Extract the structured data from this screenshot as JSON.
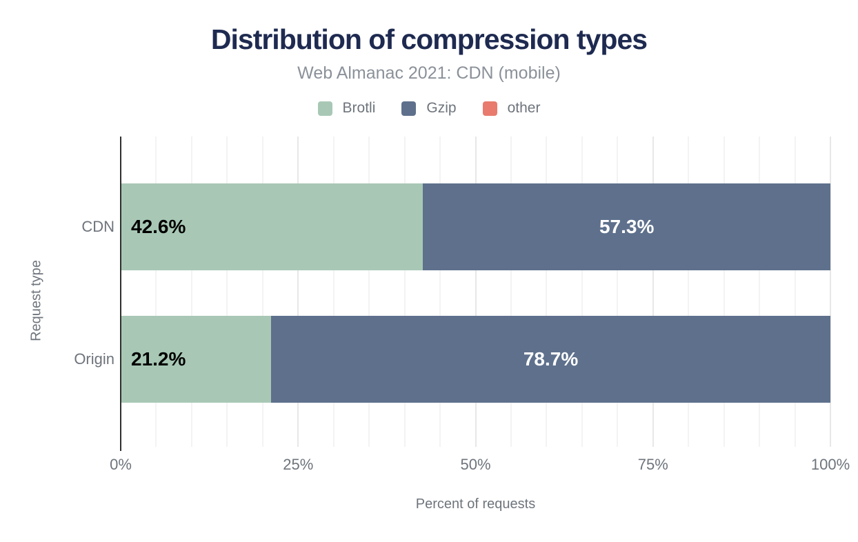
{
  "title": "Distribution of compression types",
  "subtitle": "Web Almanac 2021: CDN (mobile)",
  "legend": {
    "items": [
      {
        "label": "Brotli",
        "color": "#a8c8b5"
      },
      {
        "label": "Gzip",
        "color": "#5e708c"
      },
      {
        "label": "other",
        "color": "#e87b6d"
      }
    ]
  },
  "axes": {
    "x_title": "Percent of requests",
    "y_title": "Request type"
  },
  "colors": {
    "title_text": "#1e2a50",
    "muted_text": "#6e747c",
    "subtitle_text": "#8b9199",
    "axis_line": "#2e2e2e",
    "grid_minor": "#f3f3f3",
    "grid_major": "#e7e7e7",
    "brotli": "#a8c8b5",
    "gzip": "#5e708c",
    "other": "#e87b6d",
    "label_on_green": "#000000",
    "label_on_blue": "#ffffff"
  },
  "chart_data": {
    "type": "bar",
    "orientation": "horizontal",
    "stacked": true,
    "title": "Distribution of compression types",
    "subtitle": "Web Almanac 2021: CDN (mobile)",
    "xlabel": "Percent of requests",
    "ylabel": "Request type",
    "xlim": [
      0,
      100
    ],
    "x_tick_values": [
      0,
      25,
      50,
      75,
      100
    ],
    "x_tick_labels": [
      "0%",
      "25%",
      "50%",
      "75%",
      "100%"
    ],
    "grid": "vertical minor lines every 5%, slightly darker major lines every 25%",
    "legend_position": "top center",
    "categories": [
      "CDN",
      "Origin"
    ],
    "series": [
      {
        "name": "Brotli",
        "color": "#a8c8b5",
        "values": [
          42.6,
          21.2
        ],
        "data_labels": [
          "42.6%",
          "21.2%"
        ]
      },
      {
        "name": "Gzip",
        "color": "#5e708c",
        "values": [
          57.3,
          78.7
        ],
        "data_labels": [
          "57.3%",
          "78.7%"
        ]
      },
      {
        "name": "other",
        "color": "#e87b6d",
        "values": [
          0.1,
          0.1
        ],
        "data_labels": [
          "",
          ""
        ]
      }
    ]
  }
}
